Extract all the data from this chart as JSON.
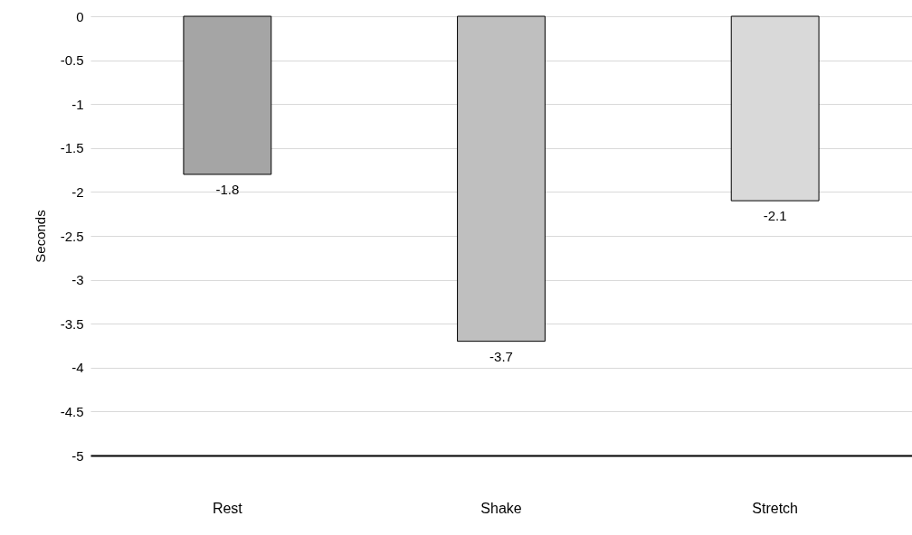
{
  "chart_data": {
    "type": "bar",
    "categories": [
      "Rest",
      "Shake",
      "Stretch"
    ],
    "values": [
      -1.8,
      -3.7,
      -2.1
    ],
    "colors": [
      "#a5a5a5",
      "#bfbfbf",
      "#d9d9d9"
    ],
    "ylabel": "Seconds",
    "ylim": [
      -5,
      0
    ],
    "yticks": [
      -5,
      -4.5,
      -4,
      -3.5,
      -3,
      -2.5,
      -2,
      -1.5,
      -1,
      -0.5,
      0
    ],
    "grid": "y",
    "data_labels": true
  }
}
